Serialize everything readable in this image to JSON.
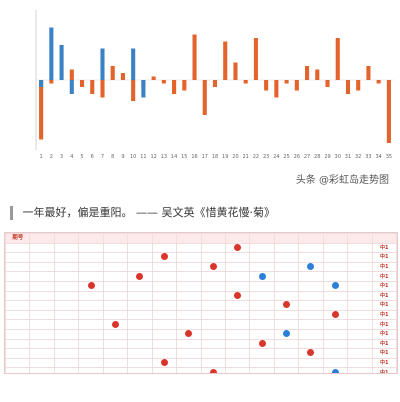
{
  "chart_data": {
    "type": "bar",
    "categories": [
      "1",
      "2",
      "3",
      "4",
      "5",
      "6",
      "7",
      "8",
      "9",
      "10",
      "11",
      "12",
      "13",
      "14",
      "15",
      "16",
      "17",
      "18",
      "19",
      "20",
      "21",
      "22",
      "23",
      "24",
      "25",
      "26",
      "27",
      "28",
      "29",
      "30",
      "31",
      "32",
      "33",
      "34",
      "35"
    ],
    "ylim": [
      -20,
      20
    ],
    "series": [
      {
        "name": "",
        "color": "#e2632b",
        "values": [
          -17,
          -1,
          0,
          3,
          -2,
          -4,
          -5,
          4,
          2,
          -6,
          -2,
          1,
          -1,
          -4,
          -3,
          13,
          -10,
          -2,
          11,
          5,
          -1,
          12,
          -3,
          -5,
          -1,
          -3,
          4,
          3,
          -2,
          12,
          -4,
          -3,
          4,
          -1,
          -18
        ]
      },
      {
        "name": "",
        "color": "#3b82c4",
        "values": [
          -2,
          15,
          10,
          -4,
          0,
          0,
          9,
          0,
          0,
          9,
          -5,
          0,
          0,
          0,
          0,
          0,
          0,
          0,
          0,
          0,
          0,
          0,
          0,
          0,
          0,
          0,
          0,
          0,
          0,
          0,
          0,
          0,
          0,
          0,
          0
        ]
      }
    ]
  },
  "watermark": "头条 @彩虹岛走势图",
  "quote": "一年最好，偏是重阳。 —— 吴文英《惜黄花慢·菊》",
  "table": {
    "headers": [
      "期号",
      "",
      "",
      "",
      "",
      "",
      "",
      "",
      "",
      "",
      "",
      "",
      "",
      "",
      "",
      ""
    ],
    "rows": [
      {
        "issue": "",
        "cells": [
          "",
          "",
          "",
          "",
          "",
          "",
          "",
          "",
          "",
          "",
          "",
          "",
          ""
        ],
        "res": "中1"
      },
      {
        "issue": "",
        "cells": [
          "",
          "",
          "",
          "",
          "",
          "",
          "",
          "",
          "",
          "",
          "",
          "",
          ""
        ],
        "res": "中1"
      },
      {
        "issue": "",
        "cells": [
          "",
          "",
          "",
          "",
          "",
          "",
          "",
          "",
          "",
          "",
          "",
          "",
          ""
        ],
        "res": "中1"
      },
      {
        "issue": "",
        "cells": [
          "",
          "",
          "",
          "",
          "",
          "",
          "",
          "",
          "",
          "",
          "",
          "",
          ""
        ],
        "res": "中1"
      },
      {
        "issue": "",
        "cells": [
          "",
          "",
          "",
          "",
          "",
          "",
          "",
          "",
          "",
          "",
          "",
          "",
          ""
        ],
        "res": "中1"
      },
      {
        "issue": "",
        "cells": [
          "",
          "",
          "",
          "",
          "",
          "",
          "",
          "",
          "",
          "",
          "",
          "",
          ""
        ],
        "res": "中1"
      },
      {
        "issue": "",
        "cells": [
          "",
          "",
          "",
          "",
          "",
          "",
          "",
          "",
          "",
          "",
          "",
          "",
          ""
        ],
        "res": "中1"
      },
      {
        "issue": "",
        "cells": [
          "",
          "",
          "",
          "",
          "",
          "",
          "",
          "",
          "",
          "",
          "",
          "",
          ""
        ],
        "res": "中1"
      },
      {
        "issue": "",
        "cells": [
          "",
          "",
          "",
          "",
          "",
          "",
          "",
          "",
          "",
          "",
          "",
          "",
          ""
        ],
        "res": "中1"
      },
      {
        "issue": "",
        "cells": [
          "",
          "",
          "",
          "",
          "",
          "",
          "",
          "",
          "",
          "",
          "",
          "",
          ""
        ],
        "res": "中1"
      },
      {
        "issue": "",
        "cells": [
          "",
          "",
          "",
          "",
          "",
          "",
          "",
          "",
          "",
          "",
          "",
          "",
          ""
        ],
        "res": "中1"
      },
      {
        "issue": "",
        "cells": [
          "",
          "",
          "",
          "",
          "",
          "",
          "",
          "",
          "",
          "",
          "",
          "",
          ""
        ],
        "res": "中1"
      },
      {
        "issue": "",
        "cells": [
          "",
          "",
          "",
          "",
          "",
          "",
          "",
          "",
          "",
          "",
          "",
          "",
          ""
        ],
        "res": "中1"
      },
      {
        "issue": "",
        "cells": [
          "",
          "",
          "",
          "",
          "",
          "",
          "",
          "",
          "",
          "",
          "",
          "",
          ""
        ],
        "res": "中1"
      },
      {
        "issue": "",
        "cells": [
          "",
          "",
          "",
          "",
          "",
          "",
          "",
          "",
          "",
          "",
          "",
          "",
          ""
        ],
        "res": "中1"
      }
    ]
  },
  "footer": {
    "line1": "",
    "line2": ""
  }
}
